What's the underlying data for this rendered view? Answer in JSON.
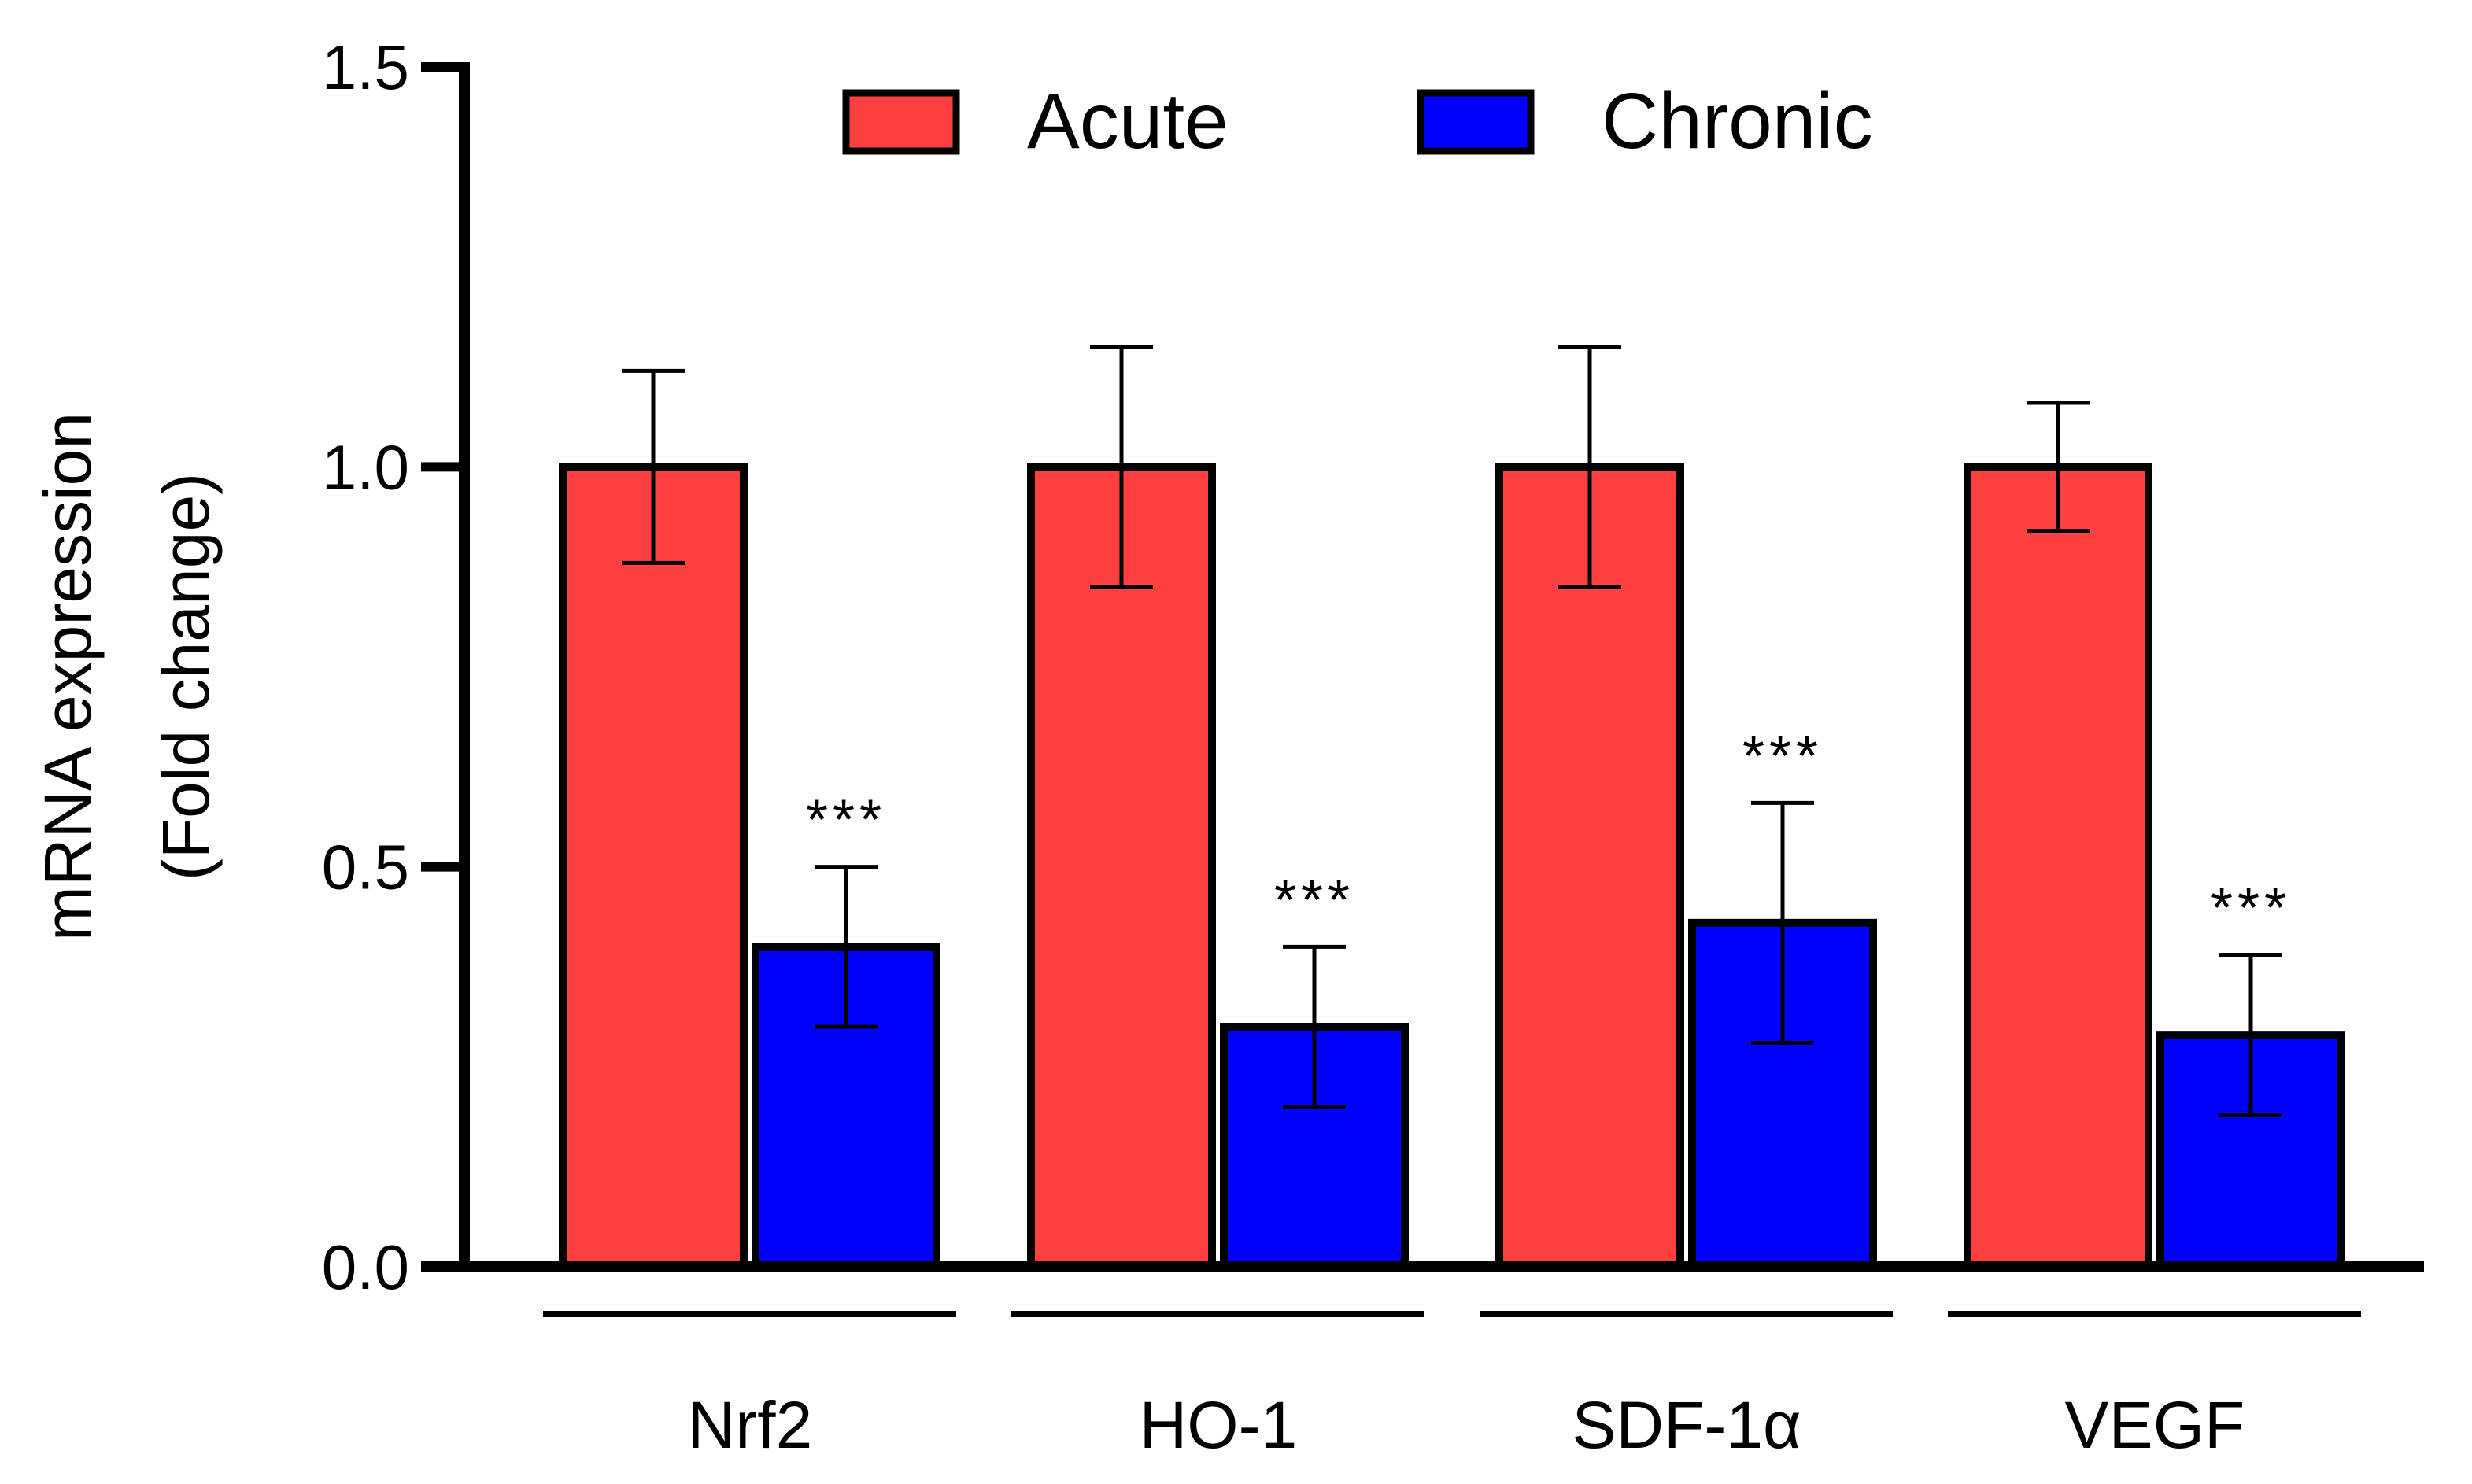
{
  "chart_data": {
    "type": "bar",
    "title": "",
    "xlabel": "",
    "ylabel": [
      "mRNA expression",
      "(Fold change)"
    ],
    "ylim": [
      0,
      1.5
    ],
    "yticks": [
      "0.0",
      "0.5",
      "1.0",
      "1.5"
    ],
    "ytick_values": [
      0,
      0.5,
      1.0,
      1.5
    ],
    "categories": [
      "Nrf2",
      "HO-1",
      "SDF-1α",
      "VEGF"
    ],
    "series": [
      {
        "name": "Acute",
        "color": "#ff4040",
        "values": [
          1.0,
          1.0,
          1.0,
          1.0
        ],
        "errors": [
          0.12,
          0.15,
          0.15,
          0.08
        ]
      },
      {
        "name": "Chronic",
        "color": "#0000ff",
        "values": [
          0.4,
          0.3,
          0.43,
          0.29
        ],
        "errors": [
          0.1,
          0.1,
          0.15,
          0.1
        ]
      }
    ],
    "annotations": [
      "***",
      "***",
      "***",
      "***"
    ],
    "legend": "top-center"
  }
}
